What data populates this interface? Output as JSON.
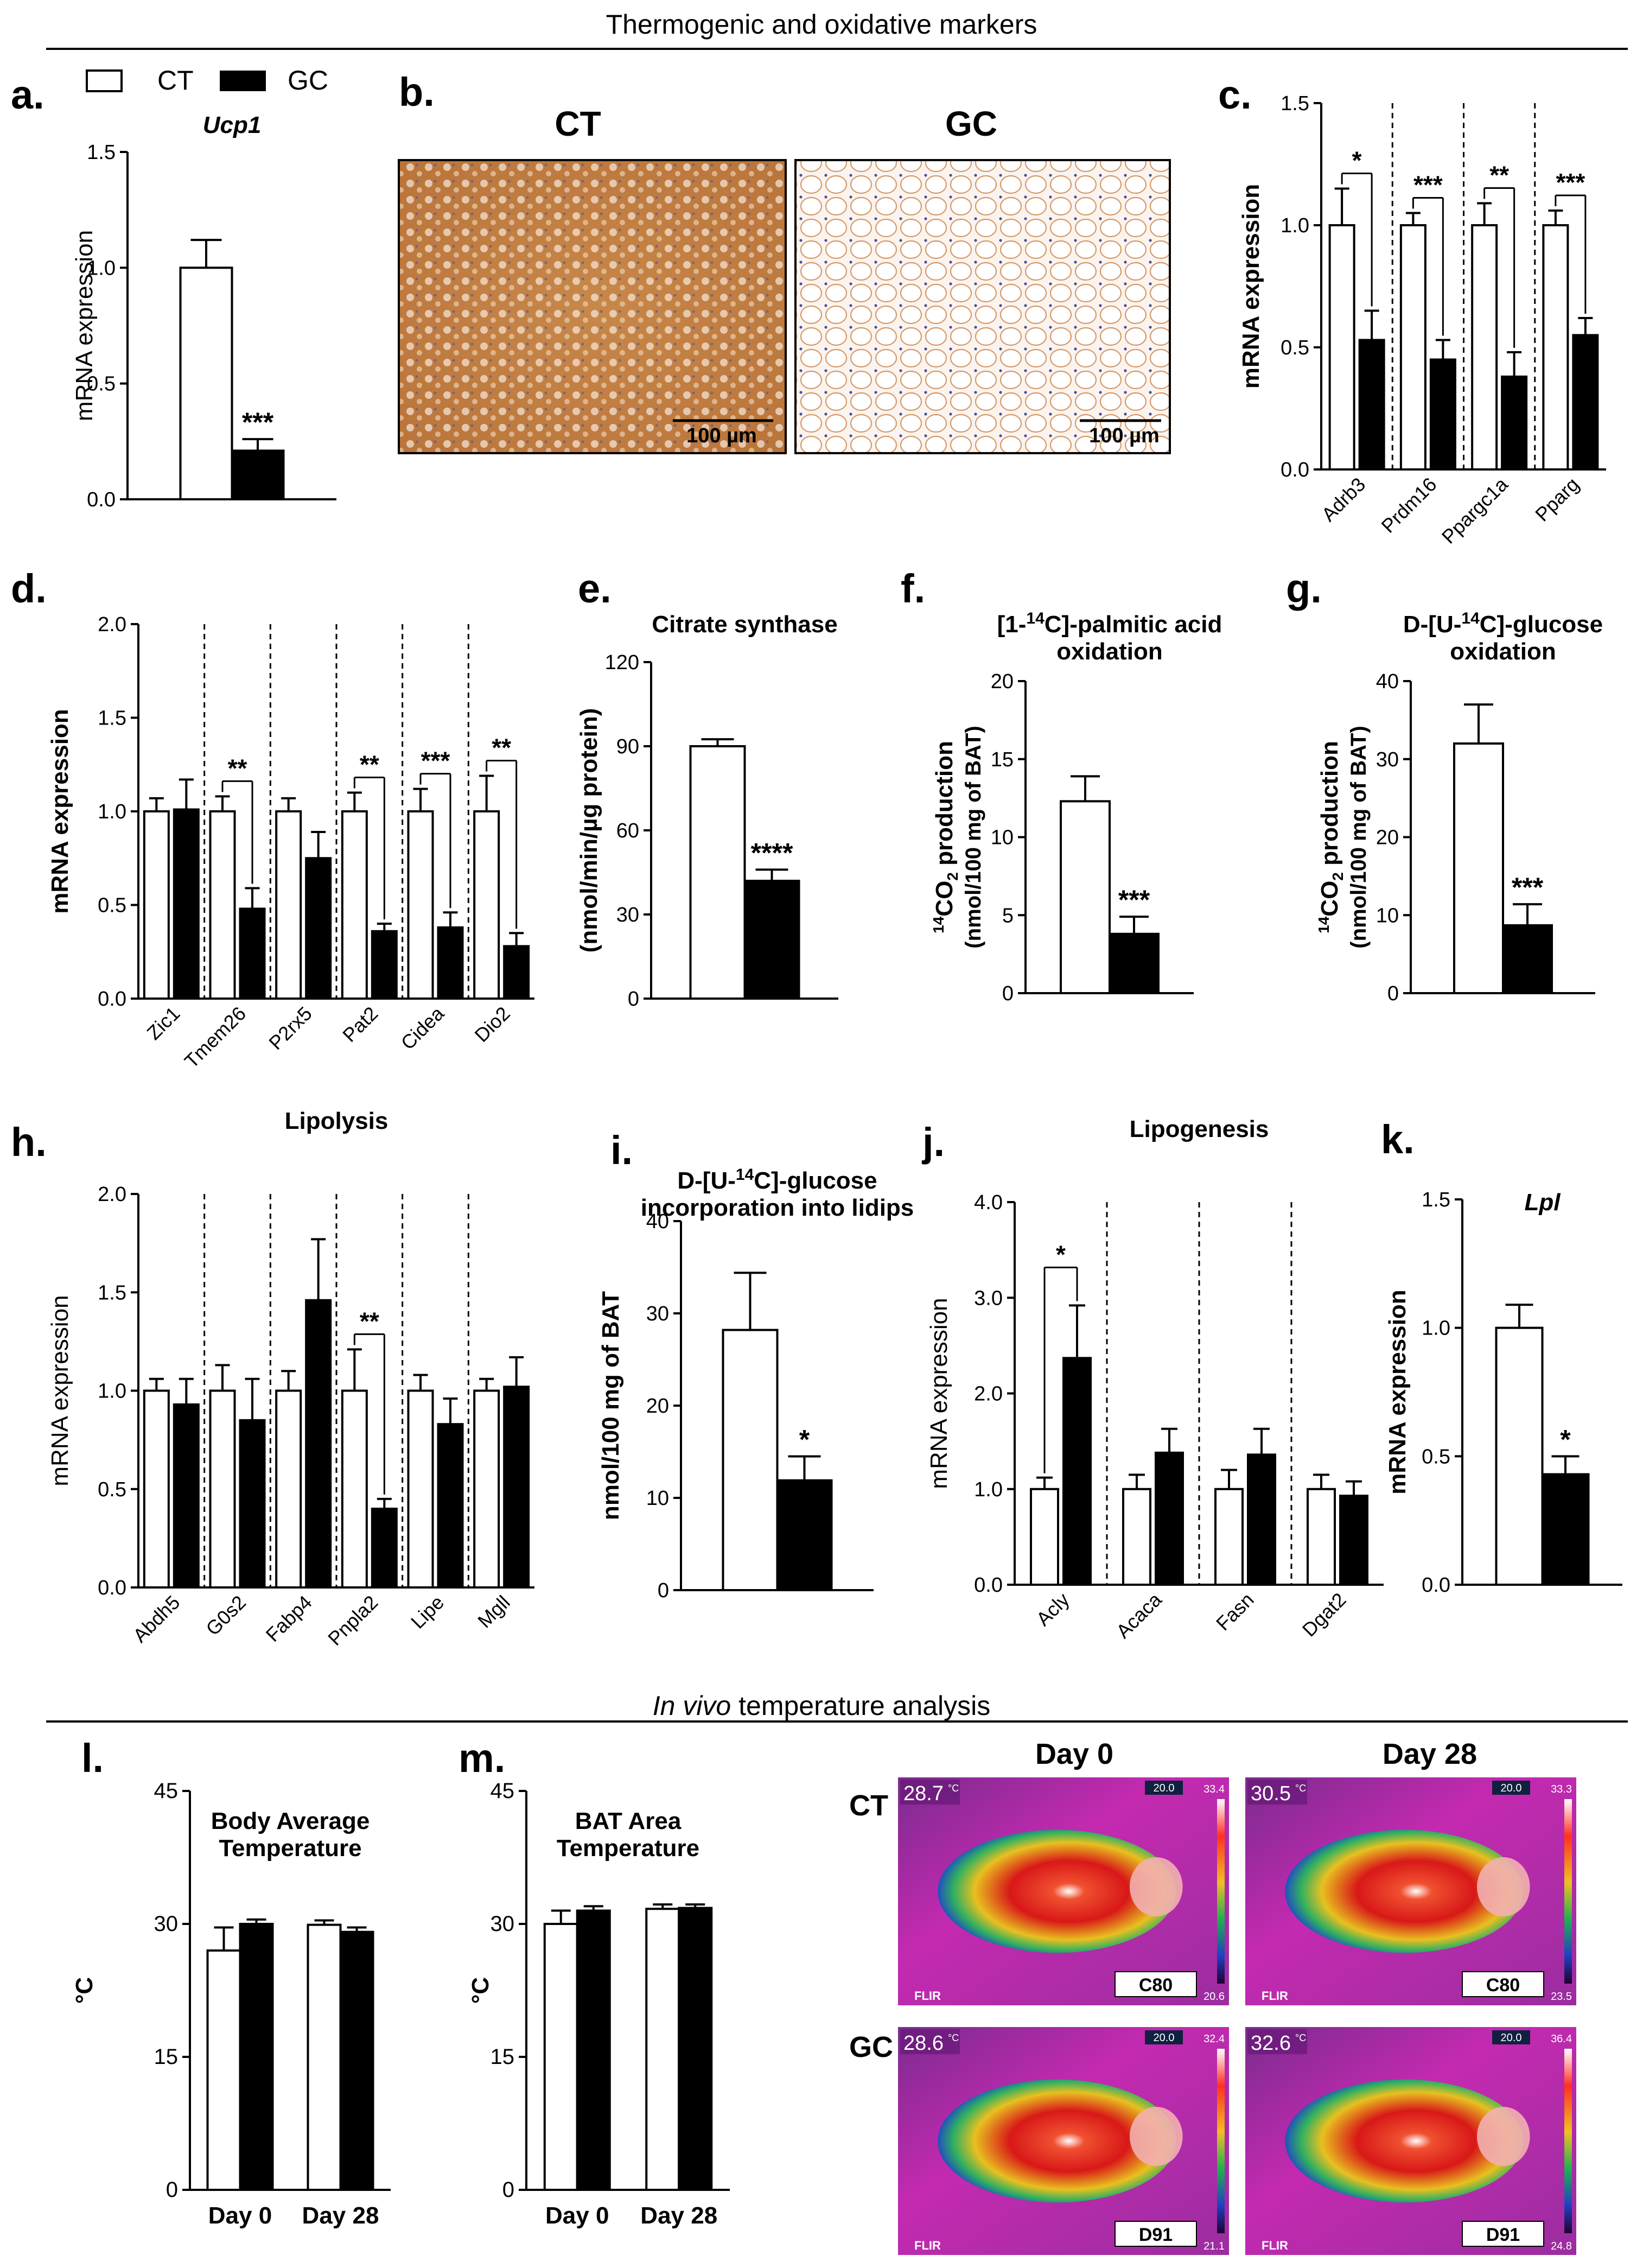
{
  "section_headers": {
    "top": "Thermogenic and oxidative markers",
    "bottom_italic": "In vivo",
    "bottom_rest": " temperature analysis"
  },
  "legend": {
    "ct": "CT",
    "gc": "GC"
  },
  "colors": {
    "ct_fill": "#ffffff",
    "gc_fill": "#000000",
    "ink": "#000000"
  },
  "panel_b": {
    "letter": "b.",
    "labels": [
      "CT",
      "GC"
    ],
    "scalebar_labels": [
      "100 µm",
      "100 µm"
    ]
  },
  "thermal": {
    "col_labels": [
      "Day 0",
      "Day 28"
    ],
    "row_labels": [
      "CT",
      "GC"
    ],
    "images": [
      {
        "temp": "28.7",
        "unit": "°C",
        "id": "C80",
        "scale_top": "33.4",
        "scale_bottom": "20.6",
        "scale_mark": "20.0",
        "brand": "FLIR"
      },
      {
        "temp": "30.5",
        "unit": "°C",
        "id": "C80",
        "scale_top": "33.3",
        "scale_bottom": "23.5",
        "scale_mark": "20.0",
        "brand": "FLIR"
      },
      {
        "temp": "28.6",
        "unit": "°C",
        "id": "D91",
        "scale_top": "32.4",
        "scale_bottom": "21.1",
        "scale_mark": "20.0",
        "brand": "FLIR"
      },
      {
        "temp": "32.6",
        "unit": "°C",
        "id": "D91",
        "scale_top": "36.4",
        "scale_bottom": "24.8",
        "scale_mark": "20.0",
        "brand": "FLIR"
      }
    ]
  },
  "chart_data": [
    {
      "id": "a",
      "letter": "a.",
      "type": "bar",
      "title": "Ucp1",
      "title_italic": true,
      "title_bold": true,
      "ylabel": "mRNA expression",
      "ylabel_bold": false,
      "ylim": [
        0,
        1.5
      ],
      "yticks": [
        "0.0",
        "0.5",
        "1.0",
        "1.5"
      ],
      "categories": [],
      "groups": [
        [
          {
            "g": "CT",
            "v": 1.0,
            "e": 0.12
          },
          {
            "g": "GC",
            "v": 0.21,
            "e": 0.05
          }
        ]
      ],
      "sig": [
        {
          "group": 0,
          "text": "***",
          "over": "GC"
        }
      ]
    },
    {
      "id": "c",
      "letter": "c.",
      "type": "bar",
      "title": "",
      "ylabel": "mRNA expression",
      "ylabel_bold": true,
      "ylim": [
        0,
        1.5
      ],
      "yticks": [
        "0.0",
        "0.5",
        "1.0",
        "1.5"
      ],
      "categories": [
        "Adrb3",
        "Prdm16",
        "Ppargc1a",
        "Pparg"
      ],
      "dividers": true,
      "groups": [
        [
          {
            "g": "CT",
            "v": 1.0,
            "e": 0.15
          },
          {
            "g": "GC",
            "v": 0.53,
            "e": 0.12
          }
        ],
        [
          {
            "g": "CT",
            "v": 1.0,
            "e": 0.05
          },
          {
            "g": "GC",
            "v": 0.45,
            "e": 0.08
          }
        ],
        [
          {
            "g": "CT",
            "v": 1.0,
            "e": 0.09
          },
          {
            "g": "GC",
            "v": 0.38,
            "e": 0.1
          }
        ],
        [
          {
            "g": "CT",
            "v": 1.0,
            "e": 0.06
          },
          {
            "g": "GC",
            "v": 0.55,
            "e": 0.07
          }
        ]
      ],
      "sig": [
        {
          "group": 0,
          "text": "*",
          "bracket": true
        },
        {
          "group": 1,
          "text": "***",
          "bracket": true
        },
        {
          "group": 2,
          "text": "**",
          "bracket": true
        },
        {
          "group": 3,
          "text": "***",
          "bracket": true
        }
      ]
    },
    {
      "id": "d",
      "letter": "d.",
      "type": "bar",
      "title": "",
      "ylabel": "mRNA expression",
      "ylabel_bold": true,
      "ylim": [
        0,
        2.0
      ],
      "yticks": [
        "0.0",
        "0.5",
        "1.0",
        "1.5",
        "2.0"
      ],
      "categories": [
        "Zic1",
        "Tmem26",
        "P2rx5",
        "Pat2",
        "Cidea",
        "Dio2"
      ],
      "dividers": true,
      "groups": [
        [
          {
            "g": "CT",
            "v": 1.0,
            "e": 0.07
          },
          {
            "g": "GC",
            "v": 1.01,
            "e": 0.16
          }
        ],
        [
          {
            "g": "CT",
            "v": 1.0,
            "e": 0.08
          },
          {
            "g": "GC",
            "v": 0.48,
            "e": 0.11
          }
        ],
        [
          {
            "g": "CT",
            "v": 1.0,
            "e": 0.07
          },
          {
            "g": "GC",
            "v": 0.75,
            "e": 0.14
          }
        ],
        [
          {
            "g": "CT",
            "v": 1.0,
            "e": 0.1
          },
          {
            "g": "GC",
            "v": 0.36,
            "e": 0.04
          }
        ],
        [
          {
            "g": "CT",
            "v": 1.0,
            "e": 0.12
          },
          {
            "g": "GC",
            "v": 0.38,
            "e": 0.08
          }
        ],
        [
          {
            "g": "CT",
            "v": 1.0,
            "e": 0.19
          },
          {
            "g": "GC",
            "v": 0.28,
            "e": 0.07
          }
        ]
      ],
      "sig": [
        {
          "group": 1,
          "text": "**",
          "bracket": true
        },
        {
          "group": 3,
          "text": "**",
          "bracket": true
        },
        {
          "group": 4,
          "text": "***",
          "bracket": true
        },
        {
          "group": 5,
          "text": "**",
          "bracket": true
        }
      ]
    },
    {
      "id": "e",
      "letter": "e.",
      "type": "bar",
      "title": "Citrate synthase",
      "title_bold": true,
      "ylabel": "(nmol/min/µg protein)",
      "ylabel_bold": true,
      "ylim": [
        0,
        120
      ],
      "yticks": [
        "0",
        "30",
        "60",
        "90",
        "120"
      ],
      "categories": [],
      "groups": [
        [
          {
            "g": "CT",
            "v": 90,
            "e": 2.5
          },
          {
            "g": "GC",
            "v": 42,
            "e": 4
          }
        ]
      ],
      "sig": [
        {
          "group": 0,
          "text": "****",
          "over": "GC"
        }
      ]
    },
    {
      "id": "f",
      "letter": "f.",
      "type": "bar",
      "title": "[1-14C]-palmitic acid",
      "title_line2": "oxidation",
      "title_bold": true,
      "title_sup": [
        "[1-",
        "14",
        "C]-palmitic acid"
      ],
      "ylabel": "14CO2 production",
      "ylabel2": "(nmol/100 mg of BAT)",
      "ylabel_bold": true,
      "ylim": [
        0,
        20
      ],
      "yticks": [
        "0",
        "5",
        "10",
        "15",
        "20"
      ],
      "categories": [],
      "groups": [
        [
          {
            "g": "CT",
            "v": 12.3,
            "e": 1.6
          },
          {
            "g": "GC",
            "v": 3.8,
            "e": 1.1
          }
        ]
      ],
      "sig": [
        {
          "group": 0,
          "text": "***",
          "over": "GC"
        }
      ]
    },
    {
      "id": "g",
      "letter": "g.",
      "type": "bar",
      "title": "D-[U-14C]-glucose",
      "title_line2": "oxidation",
      "title_bold": true,
      "title_sup": [
        "D-[U-",
        "14",
        "C]-glucose"
      ],
      "ylabel": "14CO2 production",
      "ylabel2": "(nmol/100 mg of BAT)",
      "ylabel_bold": true,
      "ylim": [
        0,
        40
      ],
      "yticks": [
        "0",
        "10",
        "20",
        "30",
        "40"
      ],
      "categories": [],
      "groups": [
        [
          {
            "g": "CT",
            "v": 32,
            "e": 5
          },
          {
            "g": "GC",
            "v": 8.7,
            "e": 2.7
          }
        ]
      ],
      "sig": [
        {
          "group": 0,
          "text": "***",
          "over": "GC"
        }
      ]
    },
    {
      "id": "h",
      "letter": "h.",
      "type": "bar",
      "title": "Lipolysis",
      "title_bold": true,
      "ylabel": "mRNA expression",
      "ylabel_bold": false,
      "ylim": [
        0,
        2.0
      ],
      "yticks": [
        "0.0",
        "0.5",
        "1.0",
        "1.5",
        "2.0"
      ],
      "categories": [
        "Abdh5",
        "G0s2",
        "Fabp4",
        "Pnpla2",
        "Lipe",
        "Mgll"
      ],
      "dividers": true,
      "groups": [
        [
          {
            "g": "CT",
            "v": 1.0,
            "e": 0.06
          },
          {
            "g": "GC",
            "v": 0.93,
            "e": 0.13
          }
        ],
        [
          {
            "g": "CT",
            "v": 1.0,
            "e": 0.13
          },
          {
            "g": "GC",
            "v": 0.85,
            "e": 0.21
          }
        ],
        [
          {
            "g": "CT",
            "v": 1.0,
            "e": 0.1
          },
          {
            "g": "GC",
            "v": 1.46,
            "e": 0.31
          }
        ],
        [
          {
            "g": "CT",
            "v": 1.0,
            "e": 0.21
          },
          {
            "g": "GC",
            "v": 0.4,
            "e": 0.05
          }
        ],
        [
          {
            "g": "CT",
            "v": 1.0,
            "e": 0.08
          },
          {
            "g": "GC",
            "v": 0.83,
            "e": 0.13
          }
        ],
        [
          {
            "g": "CT",
            "v": 1.0,
            "e": 0.06
          },
          {
            "g": "GC",
            "v": 1.02,
            "e": 0.15
          }
        ]
      ],
      "sig": [
        {
          "group": 3,
          "text": "**",
          "bracket": true
        }
      ]
    },
    {
      "id": "i",
      "letter": "i.",
      "type": "bar",
      "title": "D-[U-14C]-glucose",
      "title_line2": "incorporation into lidips",
      "title_bold": true,
      "title_sup": [
        "D-[U-",
        "14",
        "C]-glucose"
      ],
      "ylabel": "nmol/100 mg of BAT",
      "ylabel_bold": true,
      "ylim": [
        0,
        40
      ],
      "yticks": [
        "0",
        "10",
        "20",
        "30",
        "40"
      ],
      "categories": [],
      "groups": [
        [
          {
            "g": "CT",
            "v": 28.2,
            "e": 6.2
          },
          {
            "g": "GC",
            "v": 11.9,
            "e": 2.6
          }
        ]
      ],
      "sig": [
        {
          "group": 0,
          "text": "*",
          "over": "GC"
        }
      ]
    },
    {
      "id": "j",
      "letter": "j.",
      "type": "bar",
      "title": "Lipogenesis",
      "title_bold": true,
      "ylabel": "mRNA expression",
      "ylabel_bold": false,
      "ylim": [
        0,
        4.0
      ],
      "yticks": [
        "0.0",
        "1.0",
        "2.0",
        "3.0",
        "4.0"
      ],
      "categories": [
        "Acly",
        "Acaca",
        "Fasn",
        "Dgat2"
      ],
      "dividers": true,
      "groups": [
        [
          {
            "g": "CT",
            "v": 1.0,
            "e": 0.12
          },
          {
            "g": "GC",
            "v": 2.37,
            "e": 0.55
          }
        ],
        [
          {
            "g": "CT",
            "v": 1.0,
            "e": 0.15
          },
          {
            "g": "GC",
            "v": 1.38,
            "e": 0.25
          }
        ],
        [
          {
            "g": "CT",
            "v": 1.0,
            "e": 0.2
          },
          {
            "g": "GC",
            "v": 1.36,
            "e": 0.27
          }
        ],
        [
          {
            "g": "CT",
            "v": 1.0,
            "e": 0.15
          },
          {
            "g": "GC",
            "v": 0.93,
            "e": 0.15
          }
        ]
      ],
      "sig": [
        {
          "group": 0,
          "text": "*",
          "bracket": true,
          "up": true
        }
      ]
    },
    {
      "id": "k",
      "letter": "k.",
      "type": "bar",
      "title": "Lpl",
      "title_italic": true,
      "title_bold": true,
      "ylabel": "mRNA expression",
      "ylabel_bold": true,
      "ylim": [
        0,
        1.5
      ],
      "yticks": [
        "0.0",
        "0.5",
        "1.0",
        "1.5"
      ],
      "categories": [],
      "groups": [
        [
          {
            "g": "CT",
            "v": 1.0,
            "e": 0.09
          },
          {
            "g": "GC",
            "v": 0.43,
            "e": 0.07
          }
        ]
      ],
      "sig": [
        {
          "group": 0,
          "text": "*",
          "over": "GC"
        }
      ]
    },
    {
      "id": "l",
      "letter": "l.",
      "type": "bar",
      "title": "Body Average",
      "title_line2": "Temperature",
      "title_bold": true,
      "ylabel": "°C",
      "ylabel_bold": true,
      "ylim": [
        0,
        45
      ],
      "yticks": [
        "0",
        "15",
        "30",
        "45"
      ],
      "categories": [
        "Day 0",
        "Day 28"
      ],
      "dividers": false,
      "groups": [
        [
          {
            "g": "CT",
            "v": 27,
            "e": 2.6
          },
          {
            "g": "GC",
            "v": 30,
            "e": 0.5
          }
        ],
        [
          {
            "g": "CT",
            "v": 29.9,
            "e": 0.5
          },
          {
            "g": "GC",
            "v": 29.1,
            "e": 0.5
          }
        ]
      ],
      "sig": []
    },
    {
      "id": "m",
      "letter": "m.",
      "type": "bar",
      "title": "BAT Area",
      "title_line2": "Temperature",
      "title_bold": true,
      "ylabel": "°C",
      "ylabel_bold": true,
      "ylim": [
        0,
        45
      ],
      "yticks": [
        "0",
        "15",
        "30",
        "45"
      ],
      "categories": [
        "Day 0",
        "Day 28"
      ],
      "dividers": false,
      "groups": [
        [
          {
            "g": "CT",
            "v": 30,
            "e": 1.5
          },
          {
            "g": "GC",
            "v": 31.5,
            "e": 0.5
          }
        ],
        [
          {
            "g": "CT",
            "v": 31.7,
            "e": 0.5
          },
          {
            "g": "GC",
            "v": 31.8,
            "e": 0.4
          }
        ]
      ],
      "sig": []
    }
  ]
}
